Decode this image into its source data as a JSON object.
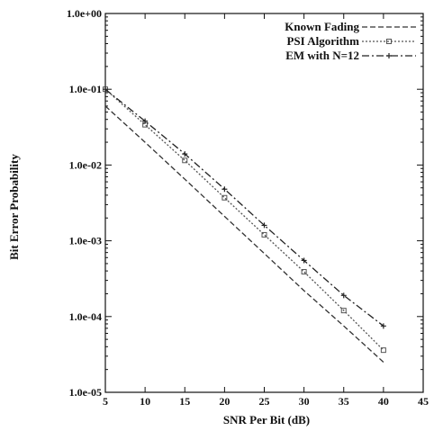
{
  "chart_data": {
    "type": "line",
    "title": "",
    "xlabel": "SNR Per Bit (dB)",
    "ylabel": "Bit Error Probability",
    "xlim": [
      5,
      45
    ],
    "ylim": [
      1e-05,
      1
    ],
    "yscale": "log",
    "grid": false,
    "legend_position": "top-right",
    "x_ticks": [
      5,
      10,
      15,
      20,
      25,
      30,
      35,
      40,
      45
    ],
    "x_tick_labels": [
      "5",
      "10",
      "15",
      "20",
      "25",
      "30",
      "35",
      "40",
      "45"
    ],
    "y_ticks": [
      1,
      0.1,
      0.01,
      0.001,
      0.0001,
      1e-05
    ],
    "y_tick_labels": [
      "1.0e+00",
      "1.0e-01",
      "1.0e-02",
      "1.0e-03",
      "1.0e-04",
      "1.0e-05"
    ],
    "x": [
      5,
      10,
      15,
      20,
      25,
      30,
      35,
      40
    ],
    "series": [
      {
        "name": "Known Fading",
        "values": [
          0.06,
          0.02,
          0.0065,
          0.0021,
          0.00068,
          0.00022,
          7.5e-05,
          2.5e-05
        ],
        "color": "#333333",
        "dash": "6 3",
        "marker": "none"
      },
      {
        "name": "PSI Algorithm",
        "values": [
          0.1,
          0.034,
          0.0115,
          0.0037,
          0.0012,
          0.00039,
          0.00012,
          3.6e-05
        ],
        "color": "#555555",
        "dash": "2 2",
        "marker": "square"
      },
      {
        "name": "EM with N=12",
        "values": [
          0.1,
          0.038,
          0.014,
          0.0048,
          0.0016,
          0.00055,
          0.00019,
          7.5e-05
        ],
        "color": "#222222",
        "dash": "8 3 2 3",
        "marker": "plus"
      }
    ]
  }
}
